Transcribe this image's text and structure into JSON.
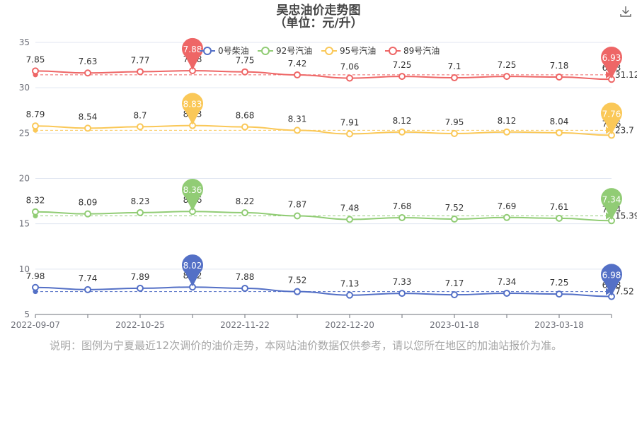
{
  "toolbar": {
    "download_icon": "download-icon"
  },
  "note": "说明：图例为宁夏最近12次调价的油价走势，本网站油价数据仅供参考，请以您所在地区的加油站报价为准。",
  "chart_data": {
    "type": "line",
    "title": "吴忠油价走势图",
    "subtitle": "（单位：元/升）",
    "x_tick_labels": [
      "2022-09-07",
      "2022-10-25",
      "2022-11-22",
      "2022-12-20",
      "2023-01-18",
      "2023-03-18"
    ],
    "ylim": [
      5,
      35
    ],
    "y_ticks": [
      5,
      10,
      15,
      20,
      25,
      30,
      35
    ],
    "grid": "horizontal",
    "legend_position": "top-center",
    "series": [
      {
        "name": "0号柴油",
        "color": "#5470c6",
        "offset": 0,
        "values": [
          7.98,
          7.74,
          7.89,
          8.02,
          7.88,
          7.52,
          7.13,
          7.33,
          7.17,
          7.34,
          7.25,
          6.98
        ],
        "max_pin": "8.02",
        "min_pin": "6.98",
        "avg_label": "7.52"
      },
      {
        "name": "92号汽油",
        "color": "#91cc75",
        "offset": 8,
        "values": [
          8.32,
          8.09,
          8.23,
          8.36,
          8.22,
          7.87,
          7.48,
          7.68,
          7.52,
          7.69,
          7.61,
          7.34
        ],
        "max_pin": "8.36",
        "min_pin": "7.34",
        "avg_label": "15.39"
      },
      {
        "name": "95号汽油",
        "color": "#fac858",
        "offset": 17,
        "values": [
          8.79,
          8.54,
          8.7,
          8.83,
          8.68,
          8.31,
          7.91,
          8.12,
          7.95,
          8.12,
          8.04,
          7.76
        ],
        "max_pin": "8.83",
        "min_pin": "7.76",
        "avg_label": "23.7"
      },
      {
        "name": "89号汽油",
        "color": "#ee6666",
        "offset": 24,
        "values": [
          7.85,
          7.63,
          7.77,
          7.88,
          7.75,
          7.42,
          7.06,
          7.25,
          7.1,
          7.25,
          7.18,
          6.93
        ],
        "max_pin": "7.88",
        "min_pin": "6.93",
        "avg_label": "31.12"
      }
    ]
  }
}
